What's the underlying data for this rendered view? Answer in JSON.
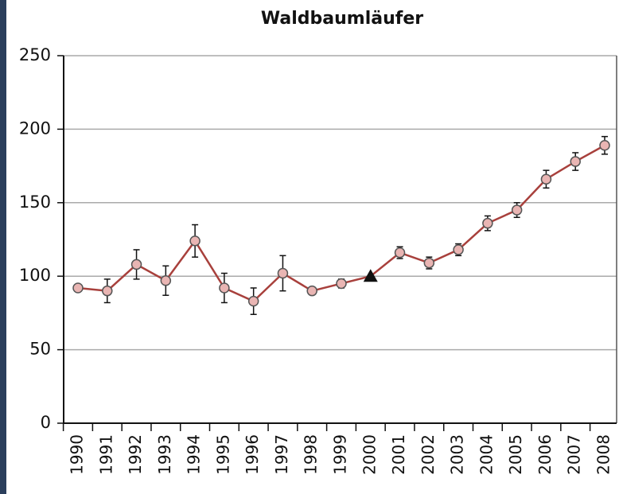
{
  "chart_data": {
    "type": "line",
    "title": "Waldbaumläufer",
    "categories": [
      "1990",
      "1991",
      "1992",
      "1993",
      "1994",
      "1995",
      "1996",
      "1997",
      "1998",
      "1999",
      "2000",
      "2001",
      "2002",
      "2003",
      "2004",
      "2005",
      "2006",
      "2007",
      "2008"
    ],
    "series": [
      {
        "color": "#a8403c",
        "values": [
          92,
          90,
          108,
          97,
          124,
          92,
          83,
          102,
          90,
          95,
          100,
          116,
          109,
          118,
          136,
          145,
          166,
          178,
          189
        ],
        "errors": [
          2,
          8,
          10,
          10,
          11,
          10,
          9,
          12,
          2,
          3,
          null,
          4,
          4,
          4,
          5,
          5,
          6,
          6,
          6
        ],
        "markers": [
          "circle",
          "circle",
          "circle",
          "circle",
          "circle",
          "circle",
          "circle",
          "circle",
          "circle",
          "circle",
          "triangle",
          "circle",
          "circle",
          "circle",
          "circle",
          "circle",
          "circle",
          "circle",
          "circle"
        ]
      }
    ],
    "ylim": [
      0,
      250
    ],
    "yticks": [
      0,
      50,
      100,
      150,
      200,
      250
    ],
    "grid": true
  }
}
